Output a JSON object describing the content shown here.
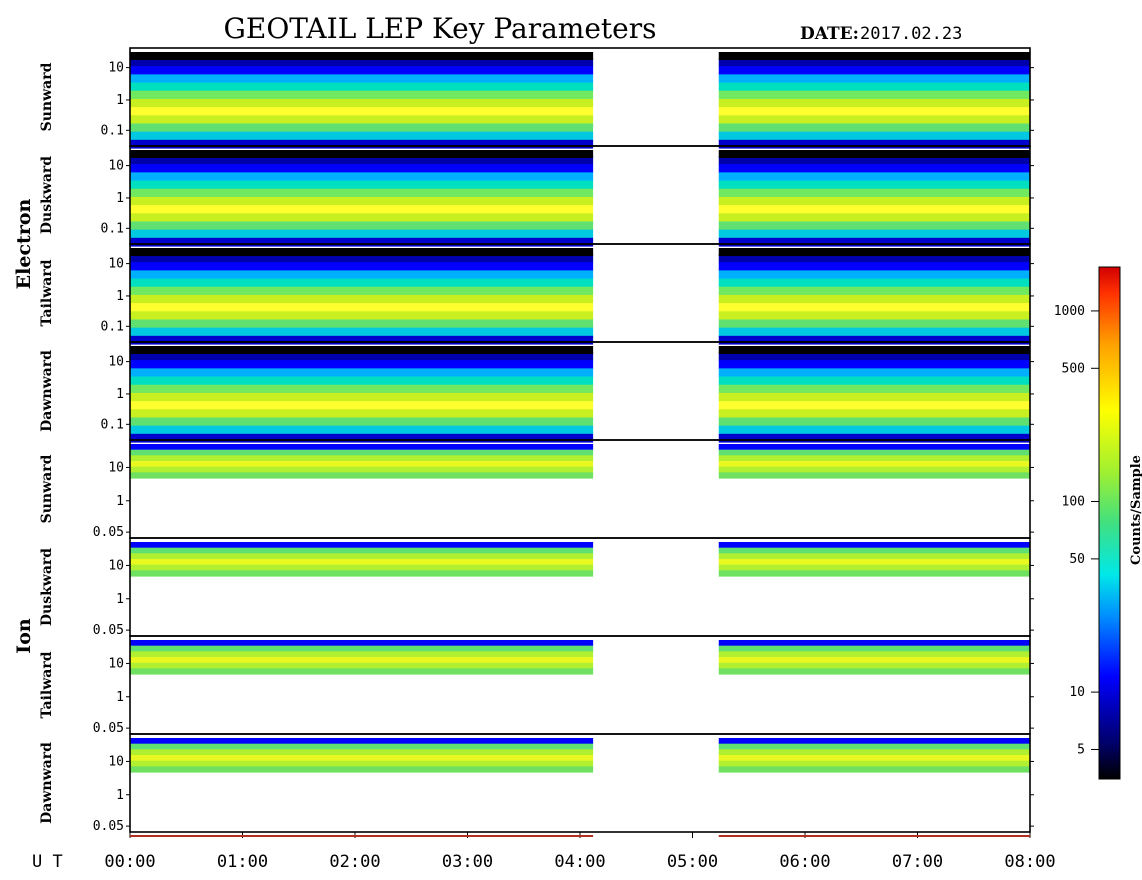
{
  "title": "GEOTAIL LEP Key Parameters",
  "date_label": "DATE:",
  "date_value": "2017.02.23",
  "x_axis_label": "U T",
  "colorbar": {
    "title": "Counts/Sample",
    "ticks": [
      "1000",
      "500",
      "100",
      "50",
      "10",
      "5"
    ]
  },
  "chart_data": {
    "type": "heatmap",
    "title": "GEOTAIL LEP Key Parameters",
    "x_ticks": [
      "00:00",
      "01:00",
      "02:00",
      "03:00",
      "04:00",
      "05:00",
      "06:00",
      "07:00",
      "08:00"
    ],
    "x_range": [
      "00:00",
      "08:00"
    ],
    "data_gap": [
      "04:07",
      "05:14"
    ],
    "colorbar": {
      "label": "Counts/Sample",
      "scale": "log",
      "ticks": [
        1000,
        500,
        100,
        50,
        10,
        5
      ],
      "colormap": [
        "#000000",
        "#0000a0",
        "#0000ff",
        "#00a0ff",
        "#00e8e8",
        "#40e080",
        "#a0f030",
        "#ffff00",
        "#ffa000",
        "#ff3000",
        "#d00000"
      ]
    },
    "groups": [
      {
        "label": "Electron",
        "panels": [
          {
            "label": "Sunward",
            "y_ticks": [
              "10",
              "1",
              "0.1"
            ]
          },
          {
            "label": "Duskward",
            "y_ticks": [
              "10",
              "1",
              "0.1"
            ]
          },
          {
            "label": "Tailward",
            "y_ticks": [
              "10",
              "1",
              "0.1"
            ]
          },
          {
            "label": "Dawnward",
            "y_ticks": [
              "10",
              "1",
              "0.1"
            ]
          }
        ]
      },
      {
        "label": "Ion",
        "panels": [
          {
            "label": "Sunward",
            "y_ticks": [
              "10",
              "1",
              "0.05"
            ]
          },
          {
            "label": "Duskward",
            "y_ticks": [
              "10",
              "1",
              "0.05"
            ]
          },
          {
            "label": "Tailward",
            "y_ticks": [
              "10",
              "1",
              "0.05"
            ]
          },
          {
            "label": "Dawnward",
            "y_ticks": [
              "10",
              "1",
              "0.05"
            ]
          }
        ]
      }
    ]
  }
}
